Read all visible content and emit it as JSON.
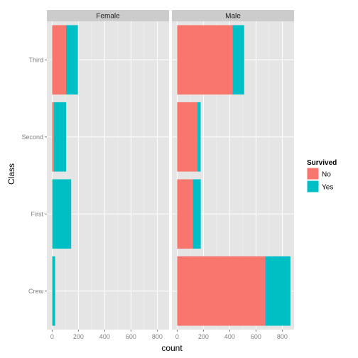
{
  "chart_data": {
    "type": "bar",
    "orientation": "horizontal",
    "stacked": true,
    "facets": [
      "Female",
      "Male"
    ],
    "categories": [
      "Crew",
      "First",
      "Second",
      "Third"
    ],
    "series": [
      {
        "name": "No",
        "color": "#F8766D",
        "values": {
          "Female": [
            3,
            4,
            13,
            106
          ],
          "Male": [
            670,
            118,
            154,
            422
          ]
        }
      },
      {
        "name": "Yes",
        "color": "#00BFC4",
        "values": {
          "Female": [
            20,
            141,
            93,
            90
          ],
          "Male": [
            192,
            62,
            25,
            88
          ]
        }
      }
    ],
    "xlabel": "count",
    "ylabel": "Class",
    "xticks": [
      0,
      200,
      400,
      600,
      800
    ],
    "xlim": [
      -40,
      890
    ],
    "grid": true,
    "legend": {
      "title": "Survived",
      "position": "right",
      "entries": [
        "No",
        "Yes"
      ]
    }
  }
}
